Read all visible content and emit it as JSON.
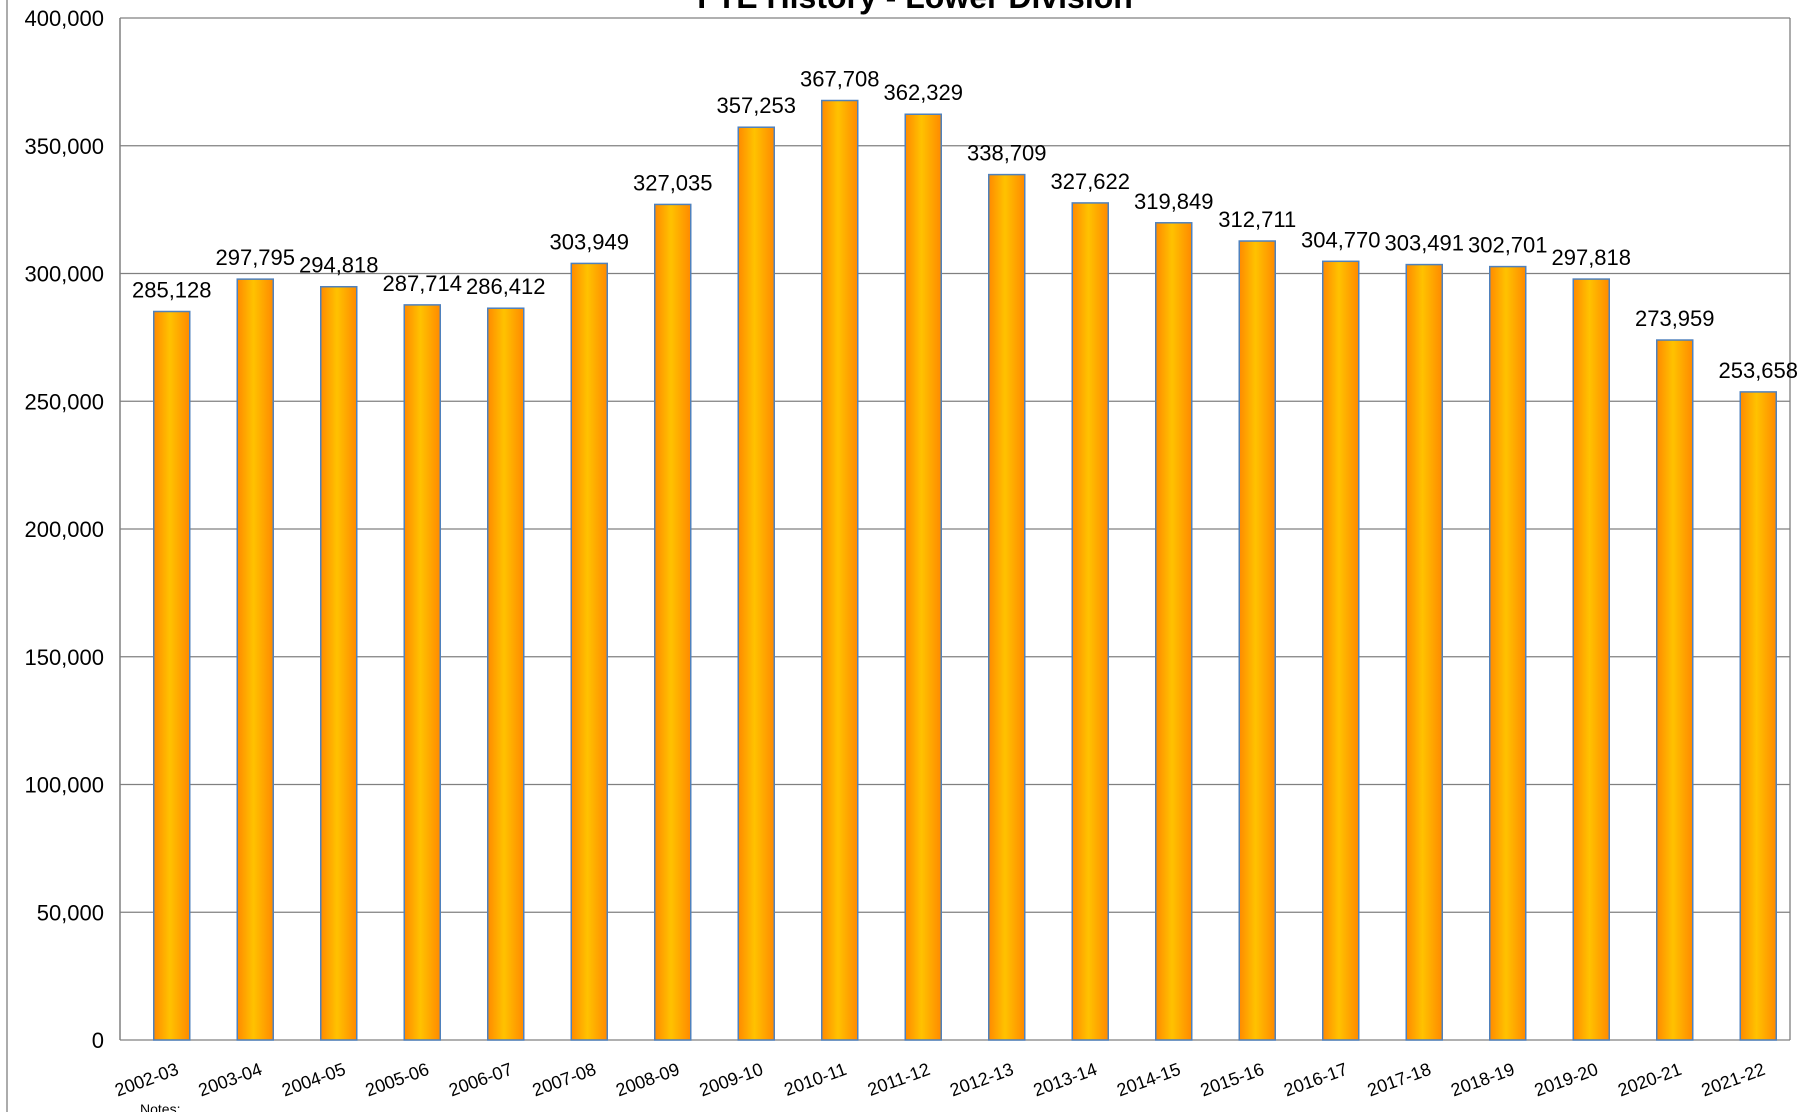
{
  "chart_data": {
    "type": "bar",
    "title": "FTE History - Lower Division",
    "xlabel": "",
    "ylabel": "",
    "ylim": [
      0,
      400000
    ],
    "yticks": [
      0,
      50000,
      100000,
      150000,
      200000,
      250000,
      300000,
      350000,
      400000
    ],
    "ytick_labels": [
      "0",
      "50,000",
      "100,000",
      "150,000",
      "200,000",
      "250,000",
      "300,000",
      "350,000",
      "400,000"
    ],
    "grid": true,
    "categories": [
      "2002-03",
      "2003-04",
      "2004-05",
      "2005-06",
      "2006-07",
      "2007-08",
      "2008-09",
      "2009-10",
      "2010-11",
      "2011-12",
      "2012-13",
      "2013-14",
      "2014-15",
      "2015-16",
      "2016-17",
      "2017-18",
      "2018-19",
      "2019-20",
      "2020-21",
      "2021-22"
    ],
    "values": [
      285128,
      297795,
      294818,
      287714,
      286412,
      303949,
      327035,
      357253,
      367708,
      362329,
      338709,
      327622,
      319849,
      312711,
      304770,
      303491,
      302701,
      297818,
      273959,
      253658
    ],
    "value_labels": [
      "285,128",
      "297,795",
      "294,818",
      "287,714",
      "286,412",
      "303,949",
      "327,035",
      "357,253",
      "367,708",
      "362,329",
      "338,709",
      "327,622",
      "319,849",
      "312,711",
      "304,770",
      "303,491",
      "302,701",
      "297,818",
      "273,959",
      "253,658"
    ],
    "colors": {
      "bar_top": "#FF8000",
      "bar_mid": "#FFC000",
      "bar_outline": "#4F81BD",
      "grid": "#808080",
      "axis": "#808080"
    }
  },
  "notes": "Notes:"
}
